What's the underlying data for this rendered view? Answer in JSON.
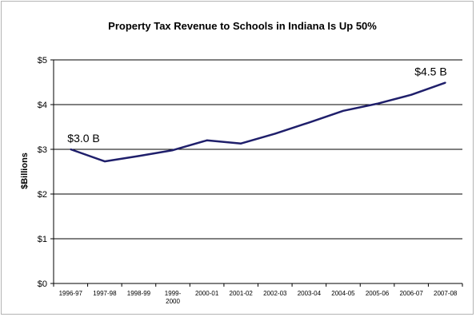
{
  "chart_data": {
    "type": "line",
    "title": "Property Tax Revenue to Schools in Indiana Is Up 50%",
    "xlabel": "",
    "ylabel": "$Billions",
    "ylim": [
      0,
      5
    ],
    "yticks": [
      {
        "value": 0,
        "label": "$0"
      },
      {
        "value": 1,
        "label": "$1"
      },
      {
        "value": 2,
        "label": "$2"
      },
      {
        "value": 3,
        "label": "$3"
      },
      {
        "value": 4,
        "label": "$4"
      },
      {
        "value": 5,
        "label": "$5"
      }
    ],
    "categories": [
      [
        "1996-97"
      ],
      [
        "1997-98"
      ],
      [
        "1998-99"
      ],
      [
        "1999-",
        "2000"
      ],
      [
        "2000-01"
      ],
      [
        "2001-02"
      ],
      [
        "2002-03"
      ],
      [
        "2003-04"
      ],
      [
        "2004-05"
      ],
      [
        "2005-06"
      ],
      [
        "2006-07"
      ],
      [
        "2007-08"
      ]
    ],
    "values": [
      3.0,
      2.73,
      2.85,
      2.98,
      3.2,
      3.13,
      3.35,
      3.6,
      3.86,
      4.02,
      4.22,
      4.49
    ],
    "grid": true,
    "line_color": "#1f1f6b",
    "annotations": [
      {
        "text": "$3.0 B",
        "index": 0
      },
      {
        "text": "$4.5 B",
        "index": 11
      }
    ]
  }
}
